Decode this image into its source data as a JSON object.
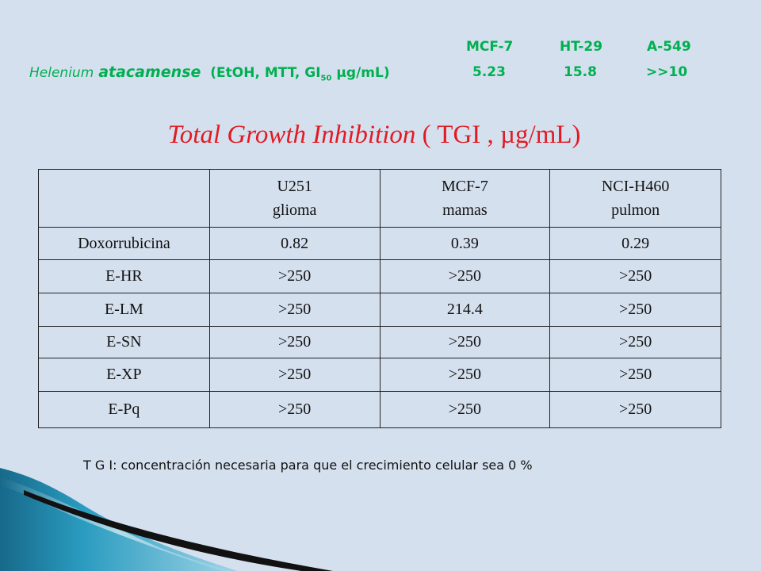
{
  "gi50": {
    "cell_lines": [
      "MCF-7",
      "HT-29",
      "A-549"
    ],
    "species_genus": "Helenium",
    "species_epithet": "atacamense",
    "method_text": "(EtOH, MTT, GI",
    "method_sub": "50",
    "method_unit": "µg/mL)",
    "values": [
      "5.23",
      "15.8",
      ">>10"
    ]
  },
  "title": {
    "italic": "Total Growth Inhibition",
    "rest": "( TGI , µg/mL)"
  },
  "table": {
    "headers": [
      {
        "line1": "",
        "line2": ""
      },
      {
        "line1": "U251",
        "line2": "glioma"
      },
      {
        "line1": "MCF-7",
        "line2": "mamas"
      },
      {
        "line1": "NCI-H460",
        "line2": "pulmon"
      }
    ],
    "rows": [
      [
        "Doxorrubicina",
        "0.82",
        "0.39",
        "0.29"
      ],
      [
        "E-HR",
        ">250",
        ">250",
        ">250"
      ],
      [
        "E-LM",
        ">250",
        "214.4",
        ">250"
      ],
      [
        "E-SN",
        ">250",
        ">250",
        ">250"
      ],
      [
        "E-XP",
        ">250",
        ">250",
        ">250"
      ],
      [
        "E-Pq",
        ">250",
        ">250",
        ">250"
      ]
    ]
  },
  "footnote": "T G I:  concentración necesaria para que el crecimiento celular sea 0 %",
  "colors": {
    "background": "#d5e0ef",
    "header_green": "#00b050",
    "title_red": "#e21b23",
    "deco_teal": "#1d7f9e"
  }
}
